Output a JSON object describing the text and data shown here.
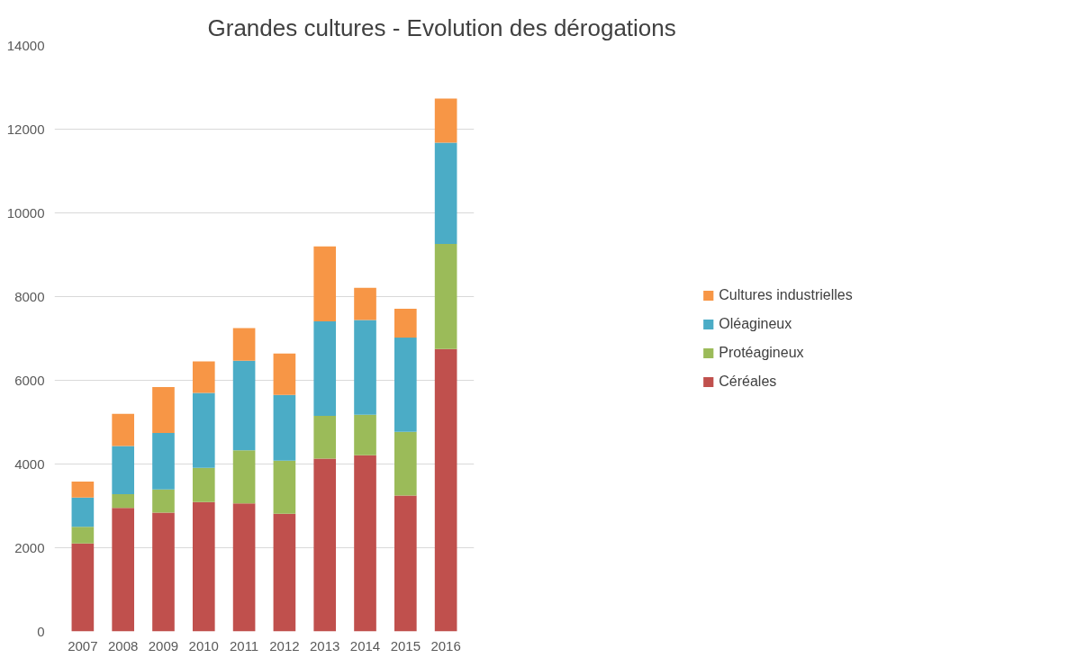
{
  "chart_data": {
    "type": "bar",
    "title": "Grandes cultures - Evolution des dérogations",
    "stacked": true,
    "categories": [
      "2007",
      "2008",
      "2009",
      "2010",
      "2011",
      "2012",
      "2013",
      "2014",
      "2015",
      "2016"
    ],
    "series": [
      {
        "name": "Céréales",
        "color": "#c0504d",
        "values": [
          2100,
          2950,
          2840,
          3090,
          3060,
          2810,
          4130,
          4210,
          3250,
          6750
        ]
      },
      {
        "name": "Protéagineux",
        "color": "#9bbb59",
        "values": [
          400,
          330,
          550,
          820,
          1270,
          1270,
          1020,
          970,
          1520,
          2510
        ]
      },
      {
        "name": "Oléagineux",
        "color": "#4bacc6",
        "values": [
          700,
          1150,
          1350,
          1790,
          2140,
          1570,
          2260,
          2260,
          2250,
          2420
        ]
      },
      {
        "name": "Cultures industrielles",
        "color": "#f79646",
        "values": [
          380,
          770,
          1100,
          750,
          780,
          990,
          1790,
          770,
          690,
          1050
        ]
      }
    ],
    "ylim": [
      0,
      14000
    ],
    "yticks": [
      0,
      2000,
      4000,
      6000,
      8000,
      10000,
      12000,
      14000
    ],
    "grid": "y",
    "legend": "right"
  }
}
